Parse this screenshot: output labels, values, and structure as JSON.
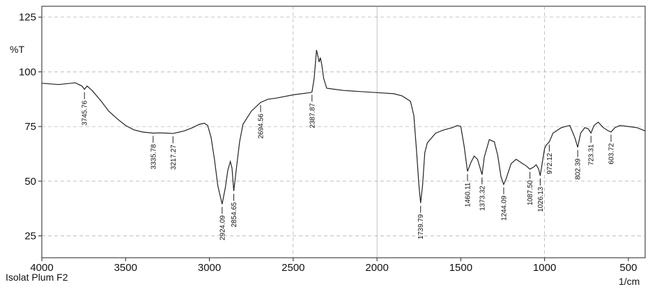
{
  "chart_data": {
    "type": "line",
    "ylabel": "%T",
    "xlabel": "1/cm",
    "sample_name": "Isolat Plum F2",
    "xlim": [
      4000,
      400
    ],
    "ylim": [
      15,
      130
    ],
    "x_ticks": [
      4000,
      3500,
      3000,
      2500,
      2000,
      1500,
      1000,
      500
    ],
    "y_ticks": [
      25,
      50,
      75,
      100,
      125
    ],
    "grid": true,
    "series": [
      {
        "values": [
          [
            4000,
            94.8
          ],
          [
            3900,
            94.2
          ],
          [
            3800,
            95.0
          ],
          [
            3760,
            93.5
          ],
          [
            3745.76,
            92.0
          ],
          [
            3730,
            93.5
          ],
          [
            3700,
            91.5
          ],
          [
            3650,
            87.0
          ],
          [
            3600,
            82.0
          ],
          [
            3550,
            78.5
          ],
          [
            3500,
            75.5
          ],
          [
            3450,
            73.5
          ],
          [
            3400,
            72.5
          ],
          [
            3335.78,
            72.0
          ],
          [
            3300,
            72.1
          ],
          [
            3250,
            72.0
          ],
          [
            3217.27,
            71.8
          ],
          [
            3150,
            73.0
          ],
          [
            3100,
            74.5
          ],
          [
            3060,
            76.0
          ],
          [
            3030,
            76.5
          ],
          [
            3010,
            75.5
          ],
          [
            2990,
            70.0
          ],
          [
            2970,
            60.0
          ],
          [
            2950,
            48.0
          ],
          [
            2924.09,
            39.5
          ],
          [
            2905,
            47.0
          ],
          [
            2890,
            55.0
          ],
          [
            2875,
            59.0
          ],
          [
            2865,
            56.0
          ],
          [
            2854.65,
            45.5
          ],
          [
            2840,
            55.0
          ],
          [
            2820,
            68.0
          ],
          [
            2800,
            76.0
          ],
          [
            2750,
            82.0
          ],
          [
            2694.56,
            86.0
          ],
          [
            2650,
            87.5
          ],
          [
            2600,
            88.0
          ],
          [
            2500,
            89.5
          ],
          [
            2400,
            90.5
          ],
          [
            2387.87,
            90.8
          ],
          [
            2375,
            97.0
          ],
          [
            2361,
            110.0
          ],
          [
            2352,
            107.0
          ],
          [
            2345,
            104.5
          ],
          [
            2338,
            106.5
          ],
          [
            2330,
            103.5
          ],
          [
            2318,
            97.0
          ],
          [
            2300,
            92.5
          ],
          [
            2250,
            92.0
          ],
          [
            2200,
            91.5
          ],
          [
            2100,
            91.0
          ],
          [
            2000,
            90.5
          ],
          [
            1900,
            90.0
          ],
          [
            1850,
            89.0
          ],
          [
            1800,
            86.5
          ],
          [
            1780,
            80.0
          ],
          [
            1765,
            65.0
          ],
          [
            1750,
            48.0
          ],
          [
            1739.79,
            40.0
          ],
          [
            1728,
            48.0
          ],
          [
            1715,
            63.0
          ],
          [
            1700,
            67.5
          ],
          [
            1650,
            72.0
          ],
          [
            1600,
            73.5
          ],
          [
            1550,
            74.5
          ],
          [
            1520,
            75.5
          ],
          [
            1500,
            75.0
          ],
          [
            1480,
            66.0
          ],
          [
            1460.11,
            54.5
          ],
          [
            1440,
            58.5
          ],
          [
            1420,
            61.5
          ],
          [
            1400,
            60.0
          ],
          [
            1385,
            56.0
          ],
          [
            1373.32,
            53.0
          ],
          [
            1360,
            61.0
          ],
          [
            1330,
            69.0
          ],
          [
            1300,
            68.0
          ],
          [
            1280,
            62.0
          ],
          [
            1260,
            52.0
          ],
          [
            1244.09,
            48.5
          ],
          [
            1230,
            51.0
          ],
          [
            1200,
            58.0
          ],
          [
            1170,
            60.0
          ],
          [
            1140,
            58.5
          ],
          [
            1110,
            57.0
          ],
          [
            1087.5,
            55.5
          ],
          [
            1065,
            56.5
          ],
          [
            1050,
            57.5
          ],
          [
            1035,
            55.5
          ],
          [
            1026.13,
            52.5
          ],
          [
            1015,
            58.0
          ],
          [
            1000,
            65.0
          ],
          [
            990,
            66.5
          ],
          [
            972.12,
            68.0
          ],
          [
            950,
            72.0
          ],
          [
            900,
            74.5
          ],
          [
            850,
            75.5
          ],
          [
            820,
            70.0
          ],
          [
            802.39,
            65.5
          ],
          [
            785,
            72.0
          ],
          [
            760,
            74.5
          ],
          [
            740,
            74.0
          ],
          [
            723.31,
            72.0
          ],
          [
            705,
            75.5
          ],
          [
            680,
            77.0
          ],
          [
            650,
            74.5
          ],
          [
            620,
            73.0
          ],
          [
            603.72,
            72.5
          ],
          [
            580,
            74.5
          ],
          [
            550,
            75.5
          ],
          [
            500,
            75.0
          ],
          [
            450,
            74.5
          ],
          [
            400,
            73.0
          ]
        ]
      }
    ],
    "peak_labels": [
      {
        "x": 3745.76,
        "label": "3745.76",
        "position": "below"
      },
      {
        "x": 3335.78,
        "label": "3335.78",
        "position": "below"
      },
      {
        "x": 3217.27,
        "label": "3217.27",
        "position": "below"
      },
      {
        "x": 2924.09,
        "label": "2924.09",
        "position": "below"
      },
      {
        "x": 2854.65,
        "label": "2854.65",
        "position": "below"
      },
      {
        "x": 2694.56,
        "label": "2694.56",
        "position": "below"
      },
      {
        "x": 2387.87,
        "label": "2387.87",
        "position": "below"
      },
      {
        "x": 1739.79,
        "label": "1739.79",
        "position": "below"
      },
      {
        "x": 1460.11,
        "label": "1460.11",
        "position": "below"
      },
      {
        "x": 1373.32,
        "label": "1373.32",
        "position": "below"
      },
      {
        "x": 1244.09,
        "label": "1244.09",
        "position": "below"
      },
      {
        "x": 1087.5,
        "label": "1087.50",
        "position": "below"
      },
      {
        "x": 1026.13,
        "label": "1026.13",
        "position": "below"
      },
      {
        "x": 972.12,
        "label": "972.12",
        "position": "below"
      },
      {
        "x": 802.39,
        "label": "802.39",
        "position": "below"
      },
      {
        "x": 723.31,
        "label": "723.31",
        "position": "below"
      },
      {
        "x": 603.72,
        "label": "603.72",
        "position": "below"
      }
    ]
  }
}
